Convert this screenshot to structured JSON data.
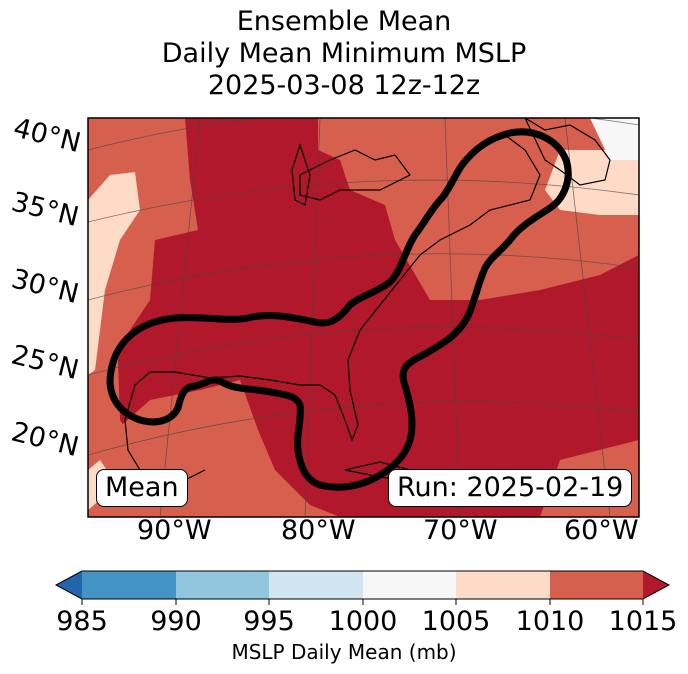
{
  "title": {
    "line1": "Ensemble Mean",
    "line2": "Daily Mean Minimum MSLP",
    "line3": "2025-03-08 12z-12z"
  },
  "map": {
    "lat_labels": [
      "40°N",
      "35°N",
      "30°N",
      "25°N",
      "20°N"
    ],
    "lon_labels": [
      "90°W",
      "80°W",
      "70°W",
      "60°W"
    ],
    "badge_left": "Mean",
    "badge_right": "Run: 2025-02-19"
  },
  "colorbar": {
    "ticks": [
      "985",
      "990",
      "995",
      "1000",
      "1005",
      "1010",
      "1015"
    ],
    "label": "MSLP Daily Mean (mb)",
    "colors": [
      "#2166ac",
      "#4393c3",
      "#92c5de",
      "#d1e5f0",
      "#f7f7f7",
      "#fddbc7",
      "#d6604d",
      "#b2182b"
    ]
  },
  "chart_data": {
    "type": "heatmap",
    "title": "Ensemble Mean Daily Mean Minimum MSLP 2025-03-08 12z-12z",
    "variable": "MSLP Daily Mean (mb)",
    "levels": [
      985,
      990,
      995,
      1000,
      1005,
      1010,
      1015
    ],
    "extend": "both",
    "lat_range": [
      15,
      40
    ],
    "lon_range": [
      -96,
      -58
    ],
    "dominant_levels": [
      "1005-1010",
      "1010-1015",
      ">1015"
    ],
    "contour": "thick black outline along US East Coast, Gulf of Mexico and Florida",
    "run": "2025-02-19"
  }
}
